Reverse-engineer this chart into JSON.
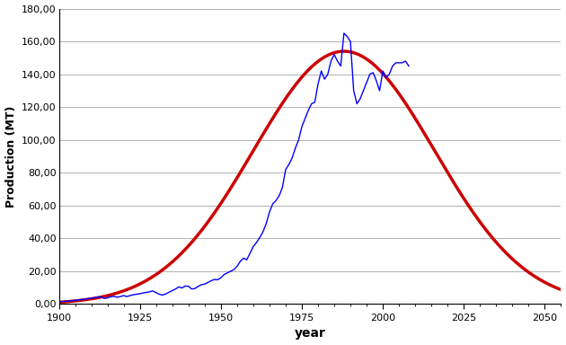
{
  "title": "",
  "xlabel": "year",
  "ylabel": "Production (MT)",
  "xlim": [
    1900,
    2055
  ],
  "ylim": [
    0,
    180
  ],
  "xticks": [
    1900,
    1925,
    1950,
    1975,
    2000,
    2025,
    2050
  ],
  "yticks": [
    0,
    20,
    40,
    60,
    80,
    100,
    120,
    140,
    160,
    180
  ],
  "ytick_labels": [
    "0,00",
    "20,00",
    "40,00",
    "60,00",
    "80,00",
    "100,00",
    "120,00",
    "140,00",
    "160,00",
    "180,00"
  ],
  "blue_color": "#0000ff",
  "red_color": "#cc0000",
  "bg_color": "#ffffff",
  "grid_color": "#b0b0b0",
  "hubbert_peak_year": 1988,
  "hubbert_peak_value": 154,
  "hubbert_sigma": 28,
  "historical_data": [
    [
      1900,
      1.5
    ],
    [
      1901,
      1.6
    ],
    [
      1902,
      1.7
    ],
    [
      1903,
      1.9
    ],
    [
      1904,
      2.1
    ],
    [
      1905,
      2.3
    ],
    [
      1906,
      2.5
    ],
    [
      1907,
      2.8
    ],
    [
      1908,
      3.0
    ],
    [
      1909,
      3.3
    ],
    [
      1910,
      3.6
    ],
    [
      1911,
      3.9
    ],
    [
      1912,
      4.2
    ],
    [
      1913,
      4.5
    ],
    [
      1914,
      3.4
    ],
    [
      1915,
      3.8
    ],
    [
      1916,
      4.5
    ],
    [
      1917,
      4.7
    ],
    [
      1918,
      4.2
    ],
    [
      1919,
      4.6
    ],
    [
      1920,
      5.2
    ],
    [
      1921,
      4.6
    ],
    [
      1922,
      5.2
    ],
    [
      1923,
      5.7
    ],
    [
      1924,
      6.0
    ],
    [
      1925,
      6.3
    ],
    [
      1926,
      6.8
    ],
    [
      1927,
      7.1
    ],
    [
      1928,
      7.5
    ],
    [
      1929,
      8.0
    ],
    [
      1930,
      7.0
    ],
    [
      1931,
      6.0
    ],
    [
      1932,
      5.5
    ],
    [
      1933,
      6.2
    ],
    [
      1934,
      7.2
    ],
    [
      1935,
      8.2
    ],
    [
      1936,
      9.2
    ],
    [
      1937,
      10.5
    ],
    [
      1938,
      9.8
    ],
    [
      1939,
      11.0
    ],
    [
      1940,
      10.8
    ],
    [
      1941,
      9.2
    ],
    [
      1942,
      9.5
    ],
    [
      1943,
      10.8
    ],
    [
      1944,
      11.8
    ],
    [
      1945,
      12.2
    ],
    [
      1946,
      13.2
    ],
    [
      1947,
      14.2
    ],
    [
      1948,
      15.0
    ],
    [
      1949,
      14.8
    ],
    [
      1950,
      16.0
    ],
    [
      1951,
      18.0
    ],
    [
      1952,
      19.0
    ],
    [
      1953,
      20.0
    ],
    [
      1954,
      21.0
    ],
    [
      1955,
      23.0
    ],
    [
      1956,
      26.0
    ],
    [
      1957,
      28.0
    ],
    [
      1958,
      27.0
    ],
    [
      1959,
      31.0
    ],
    [
      1960,
      35.0
    ],
    [
      1961,
      37.5
    ],
    [
      1962,
      40.5
    ],
    [
      1963,
      44.0
    ],
    [
      1964,
      49.0
    ],
    [
      1965,
      56.0
    ],
    [
      1966,
      61.0
    ],
    [
      1967,
      63.0
    ],
    [
      1968,
      66.0
    ],
    [
      1969,
      71.0
    ],
    [
      1970,
      82.0
    ],
    [
      1971,
      85.0
    ],
    [
      1972,
      89.0
    ],
    [
      1973,
      95.0
    ],
    [
      1974,
      100.0
    ],
    [
      1975,
      108.0
    ],
    [
      1976,
      113.0
    ],
    [
      1977,
      118.0
    ],
    [
      1978,
      122.0
    ],
    [
      1979,
      123.0
    ],
    [
      1980,
      134.0
    ],
    [
      1981,
      142.0
    ],
    [
      1982,
      137.0
    ],
    [
      1983,
      140.0
    ],
    [
      1984,
      148.0
    ],
    [
      1985,
      152.0
    ],
    [
      1986,
      148.0
    ],
    [
      1987,
      145.0
    ],
    [
      1988,
      165.0
    ],
    [
      1989,
      163.0
    ],
    [
      1990,
      160.0
    ],
    [
      1991,
      130.0
    ],
    [
      1992,
      122.0
    ],
    [
      1993,
      125.0
    ],
    [
      1994,
      130.0
    ],
    [
      1995,
      135.0
    ],
    [
      1996,
      140.0
    ],
    [
      1997,
      141.0
    ],
    [
      1998,
      136.0
    ],
    [
      1999,
      130.0
    ],
    [
      2000,
      142.0
    ],
    [
      2001,
      138.0
    ],
    [
      2002,
      140.0
    ],
    [
      2003,
      145.0
    ],
    [
      2004,
      147.0
    ],
    [
      2005,
      147.0
    ],
    [
      2006,
      147.0
    ],
    [
      2007,
      148.0
    ],
    [
      2008,
      145.0
    ]
  ]
}
